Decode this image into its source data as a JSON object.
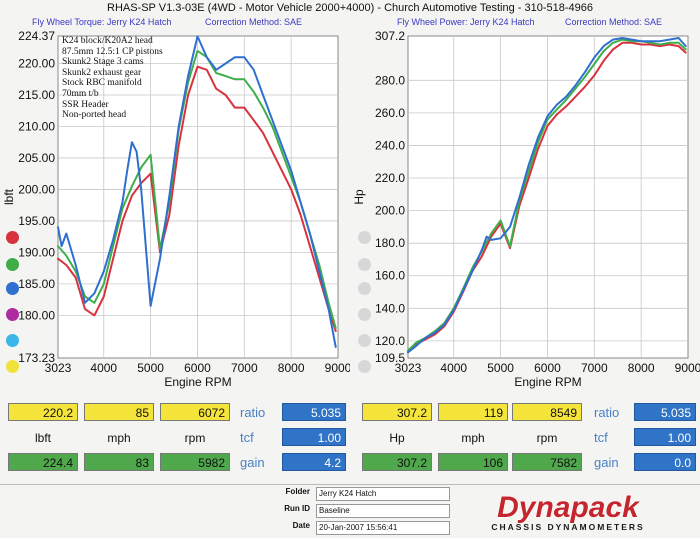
{
  "title": "RHAS-SP V1.3-03E  (4WD - Motor Vehicle 2000+4000) - Church Automotive Testing - 310-518-4966",
  "colors": {
    "red": "#d8323e",
    "green": "#3fae49",
    "blue": "#2f6fcf",
    "magenta": "#b02aa0",
    "cyan": "#3ab6e8",
    "yellow": "#f0e23a"
  },
  "left": {
    "subtitle_a": "Fly Wheel Torque: Jerry K24 Hatch",
    "subtitle_b": "Correction Method: SAE",
    "notes": [
      "K24 block/K20A2 head",
      "87.5mm 12.5:1 CP pistons",
      "Skunk2 Stage 3 cams",
      "Skunk2 exhaust gear",
      "Stock RBC manifold",
      "70mm t/b",
      "SSR Header",
      "Non-ported head"
    ],
    "readout": {
      "top": [
        "220.2",
        "85",
        "6072"
      ],
      "units": [
        "lbft",
        "mph",
        "rpm"
      ],
      "bottom": [
        "224.4",
        "83",
        "5982"
      ],
      "blue_labels": [
        "ratio",
        "tcf",
        "gain"
      ],
      "blue_values": [
        "5.035",
        "1.00",
        "4.2"
      ]
    }
  },
  "right": {
    "subtitle_a": "Fly Wheel Power: Jerry K24 Hatch",
    "subtitle_b": "Correction Method: SAE",
    "readout": {
      "top": [
        "307.2",
        "119",
        "8549"
      ],
      "units": [
        "Hp",
        "mph",
        "rpm"
      ],
      "bottom": [
        "307.2",
        "106",
        "7582"
      ],
      "blue_labels": [
        "ratio",
        "tcf",
        "gain"
      ],
      "blue_values": [
        "5.035",
        "1.00",
        "0.0"
      ]
    }
  },
  "footer": {
    "folder_label": "Folder",
    "folder_value": "Jerry K24 Hatch",
    "run_label": "Run ID",
    "run_value": "Baseline",
    "date_label": "Date",
    "date_value": "20-Jan-2007  15:56:41",
    "logo": "Dynapack",
    "logo_sub": "CHASSIS DYNAMOMETERS"
  },
  "chart_data": [
    {
      "type": "line",
      "xlabel": "Engine RPM",
      "ylabel": "lbft",
      "xlim": [
        3023,
        9000
      ],
      "ylim": [
        173.23,
        224.37
      ],
      "xticks": [
        3023,
        4000,
        5000,
        6000,
        7000,
        8000,
        9000
      ],
      "yticks": [
        173.23,
        180.0,
        185.0,
        190.0,
        195.0,
        200.0,
        205.0,
        210.0,
        215.0,
        220.0,
        224.37
      ],
      "ytick_labels": [
        "173.23",
        "180.00",
        "185.00",
        "190.00",
        "195.00",
        "200.00",
        "205.00",
        "210.00",
        "215.00",
        "220.00",
        "224.37"
      ],
      "series": [
        {
          "color": "red",
          "x": [
            3023,
            3200,
            3400,
            3600,
            3800,
            4000,
            4200,
            4400,
            4600,
            4800,
            5000,
            5200,
            5400,
            5600,
            5800,
            6000,
            6200,
            6400,
            6600,
            6800,
            7000,
            7200,
            7400,
            7600,
            7800,
            8000,
            8200,
            8400,
            8600,
            8800,
            8950
          ],
          "y": [
            189,
            188,
            186,
            181,
            180,
            183,
            189,
            195,
            199,
            201,
            202.5,
            190,
            196,
            207,
            215,
            219.5,
            219,
            216,
            215,
            213,
            213,
            211,
            209,
            206,
            203,
            200,
            196,
            191,
            186,
            181,
            177.5
          ]
        },
        {
          "color": "green",
          "x": [
            3023,
            3200,
            3400,
            3600,
            3800,
            4000,
            4200,
            4400,
            4600,
            4800,
            5000,
            5200,
            5400,
            5600,
            5800,
            6000,
            6200,
            6400,
            6600,
            6800,
            7000,
            7200,
            7400,
            7600,
            7800,
            8000,
            8200,
            8400,
            8600,
            8800,
            8950
          ],
          "y": [
            191,
            189.5,
            187,
            183,
            182,
            185,
            191,
            197,
            200.5,
            203.5,
            205.5,
            190.5,
            198,
            209.5,
            217,
            222,
            221,
            218.5,
            218,
            217.5,
            217.5,
            215.5,
            213,
            210,
            206,
            202,
            198,
            193,
            188,
            182,
            178
          ]
        },
        {
          "color": "blue",
          "x": [
            3023,
            3100,
            3200,
            3400,
            3600,
            3800,
            4000,
            4200,
            4400,
            4500,
            4600,
            4700,
            4800,
            5000,
            5200,
            5400,
            5600,
            5800,
            6000,
            6200,
            6400,
            6600,
            6800,
            7000,
            7200,
            7400,
            7600,
            7800,
            8000,
            8200,
            8400,
            8600,
            8800,
            8950
          ],
          "y": [
            194,
            191,
            193,
            188,
            182,
            183.5,
            187,
            192,
            198,
            203,
            207.5,
            206,
            200,
            181.5,
            189,
            199,
            210,
            218,
            224.3,
            221,
            219,
            220,
            221,
            221,
            219,
            215,
            211,
            207,
            203,
            198,
            193,
            187,
            181,
            175
          ]
        }
      ]
    },
    {
      "type": "line",
      "xlabel": "Engine RPM",
      "ylabel": "Hp",
      "xlim": [
        3023,
        9000
      ],
      "ylim": [
        109.5,
        307.2
      ],
      "xticks": [
        3023,
        4000,
        5000,
        6000,
        7000,
        8000,
        9000
      ],
      "yticks": [
        109.5,
        120.0,
        140.0,
        160.0,
        180.0,
        200.0,
        220.0,
        240.0,
        260.0,
        280.0,
        307.2
      ],
      "ytick_labels": [
        "109.5",
        "120.0",
        "140.0",
        "160.0",
        "180.0",
        "200.0",
        "220.0",
        "240.0",
        "260.0",
        "280.0",
        "307.2"
      ],
      "series": [
        {
          "color": "red",
          "x": [
            3023,
            3200,
            3400,
            3600,
            3800,
            4000,
            4200,
            4400,
            4600,
            4800,
            5000,
            5200,
            5400,
            5600,
            5800,
            6000,
            6200,
            6400,
            6600,
            6800,
            7000,
            7200,
            7400,
            7600,
            7800,
            8000,
            8200,
            8400,
            8600,
            8800,
            8950
          ],
          "y": [
            113,
            118,
            121,
            124,
            129,
            138,
            150,
            163,
            172,
            184,
            192,
            177,
            203,
            220,
            238,
            252,
            259,
            264,
            270,
            276,
            283,
            292,
            299,
            303,
            303,
            302,
            302,
            301,
            302,
            301,
            297
          ]
        },
        {
          "color": "green",
          "x": [
            3023,
            3200,
            3400,
            3600,
            3800,
            4000,
            4200,
            4400,
            4600,
            4800,
            5000,
            5200,
            5400,
            5600,
            5800,
            6000,
            6200,
            6400,
            6600,
            6800,
            7000,
            7200,
            7400,
            7600,
            7800,
            8000,
            8200,
            8400,
            8600,
            8800,
            8950
          ],
          "y": [
            114,
            119,
            122,
            126,
            131,
            140,
            152,
            165,
            175,
            186,
            194,
            178,
            206,
            224,
            242,
            256,
            262,
            268,
            275,
            282,
            290,
            298,
            303,
            305,
            304,
            304,
            303,
            302,
            303,
            303,
            299
          ]
        },
        {
          "color": "blue",
          "x": [
            3023,
            3200,
            3400,
            3600,
            3800,
            4000,
            4200,
            4400,
            4600,
            4700,
            4800,
            5000,
            5200,
            5400,
            5600,
            5800,
            6000,
            6200,
            6400,
            6600,
            6800,
            7000,
            7200,
            7400,
            7600,
            7800,
            8000,
            8200,
            8400,
            8600,
            8800,
            8950
          ],
          "y": [
            113,
            117,
            122,
            125,
            130,
            139,
            151,
            163,
            176,
            184,
            182,
            183,
            190,
            208,
            228,
            245,
            258,
            265,
            270,
            277,
            285,
            294,
            301,
            305,
            306,
            305,
            304,
            304,
            304,
            305,
            306,
            301
          ]
        }
      ]
    }
  ]
}
